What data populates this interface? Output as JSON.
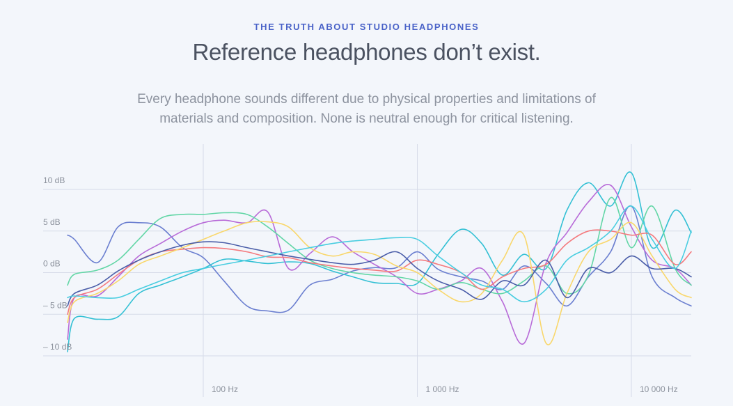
{
  "header": {
    "eyebrow": "THE TRUTH ABOUT STUDIO HEADPHONES",
    "title": "Reference headphones don’t exist.",
    "lead_line1": "Every headphone sounds different due to physical properties and limitations of",
    "lead_line2": "materials and composition. None is neutral enough for critical listening."
  },
  "chart_data": {
    "type": "line",
    "title": "",
    "xlabel": "",
    "ylabel": "",
    "x_scale": "log",
    "xlim": [
      20,
      20000
    ],
    "ylim": [
      -12,
      16
    ],
    "grid": true,
    "y_ticks": [
      {
        "value": 10,
        "label": "10 dB"
      },
      {
        "value": 5,
        "label": "5 dB"
      },
      {
        "value": 0,
        "label": "0 dB"
      },
      {
        "value": -5,
        "label": "– 5 dB"
      },
      {
        "value": -10,
        "label": "– 10 dB"
      }
    ],
    "x_ticks": [
      {
        "value": 100,
        "label": "100 Hz"
      },
      {
        "value": 1000,
        "label": "1 000 Hz"
      },
      {
        "value": 10000,
        "label": "10 000 Hz"
      }
    ],
    "x": [
      20,
      25,
      32,
      40,
      50,
      63,
      80,
      100,
      125,
      160,
      200,
      250,
      315,
      400,
      500,
      630,
      800,
      1000,
      1250,
      1600,
      2000,
      2500,
      3150,
      4000,
      5000,
      6300,
      8000,
      10000,
      12500,
      16000,
      20000
    ],
    "series": [
      {
        "color": "#6b7fd0",
        "values": [
          4.5,
          4.0,
          1.2,
          5.5,
          6.0,
          5.5,
          3.0,
          1.8,
          -1.0,
          -4.0,
          -4.6,
          -4.5,
          -1.5,
          -0.8,
          0.2,
          0.6,
          0.6,
          2.5,
          0.4,
          -0.5,
          -1.0,
          -2.0,
          0.8,
          -1.3,
          -4.0,
          -0.5,
          2.5,
          8.0,
          -0.5,
          -3.0,
          -4.0
        ]
      },
      {
        "color": "#33c0d4",
        "values": [
          -9.5,
          -5.5,
          -5.6,
          -5.3,
          -2.5,
          -1.5,
          -0.5,
          0.5,
          1.6,
          1.4,
          1.1,
          1.3,
          1.1,
          0.2,
          -0.5,
          -1.2,
          -1.3,
          -1.3,
          2.2,
          5.2,
          3.5,
          -0.3,
          2.2,
          0.5,
          7.5,
          10.8,
          8.0,
          12.0,
          3.0,
          7.5,
          4.8
        ]
      },
      {
        "color": "#b86bd8",
        "values": [
          -8.0,
          -3.0,
          -2.8,
          -0.5,
          2.0,
          3.5,
          5.0,
          6.0,
          6.3,
          6.0,
          7.3,
          0.5,
          2.3,
          4.3,
          2.5,
          1.0,
          -0.5,
          -2.5,
          -2.0,
          -1.0,
          0.5,
          -3.5,
          -8.5,
          1.2,
          4.8,
          8.5,
          10.5,
          5.5,
          1.5,
          0.5,
          -1.5
        ]
      },
      {
        "color": "#62d6a6",
        "values": [
          -1.5,
          -0.2,
          0.3,
          1.5,
          4.0,
          6.5,
          7.0,
          7.0,
          7.2,
          7.0,
          5.5,
          3.5,
          1.5,
          0.5,
          0.0,
          -0.3,
          -0.5,
          -1.0,
          -2.0,
          -1.2,
          -2.0,
          -2.5,
          -1.0,
          0.8,
          -2.5,
          -0.3,
          9.0,
          3.0,
          8.0,
          0.5,
          -1.5
        ]
      },
      {
        "color": "#f47a7e",
        "values": [
          -5.0,
          -3.0,
          -2.0,
          -0.2,
          1.5,
          2.5,
          2.8,
          3.0,
          2.9,
          2.5,
          1.9,
          1.8,
          1.2,
          0.8,
          0.5,
          0.3,
          0.2,
          1.5,
          1.0,
          0.0,
          -2.0,
          -0.5,
          0.5,
          1.0,
          3.5,
          5.0,
          5.0,
          4.5,
          4.5,
          1.0,
          2.5
        ]
      },
      {
        "color": "#f9d76b",
        "values": [
          -6.0,
          -3.5,
          -2.5,
          -1.0,
          1.0,
          2.0,
          3.0,
          4.0,
          5.0,
          6.0,
          6.1,
          5.5,
          3.0,
          2.0,
          2.5,
          2.2,
          0.8,
          0.0,
          -2.0,
          -3.5,
          -2.5,
          1.5,
          4.5,
          -8.5,
          -2.5,
          2.5,
          4.0,
          6.0,
          2.0,
          -2.0,
          -3.0
        ]
      },
      {
        "color": "#4a5da8",
        "values": [
          -4.0,
          -2.5,
          -1.5,
          0.2,
          1.5,
          2.5,
          3.3,
          3.7,
          3.6,
          3.0,
          2.5,
          2.0,
          1.6,
          1.2,
          1.0,
          1.5,
          2.5,
          0.5,
          -1.0,
          -2.0,
          -3.2,
          -1.0,
          -1.5,
          1.5,
          -3.0,
          0.5,
          0.0,
          2.0,
          0.5,
          0.5,
          -0.5
        ]
      },
      {
        "color": "#48cde0",
        "values": [
          -3.0,
          -2.8,
          -3.0,
          -3.0,
          -2.0,
          -1.0,
          0.0,
          0.5,
          1.0,
          1.5,
          2.0,
          2.5,
          3.0,
          3.5,
          3.8,
          4.0,
          4.2,
          4.0,
          2.0,
          0.0,
          -1.5,
          -2.0,
          -3.5,
          -2.0,
          1.5,
          3.0,
          5.0,
          8.0,
          4.0,
          0.5,
          5.0
        ]
      }
    ]
  }
}
